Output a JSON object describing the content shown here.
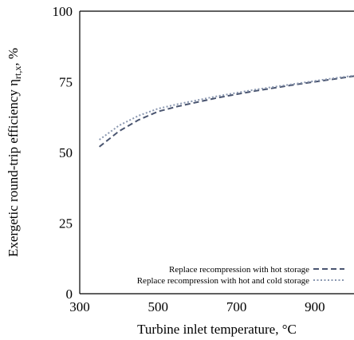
{
  "chart_data": {
    "type": "line",
    "xlabel": "Turbine inlet temperature, °C",
    "ylabel_main": "Exergetic round-trip efficiency η",
    "ylabel_sub": "rt,x",
    "ylabel_suffix": ", %",
    "xlim": [
      300,
      1000
    ],
    "ylim": [
      0,
      100
    ],
    "xticks": [
      300,
      500,
      700,
      900
    ],
    "yticks": [
      0,
      25,
      50,
      75,
      100
    ],
    "grid": false,
    "legend_position": "bottom-right",
    "series": [
      {
        "name": "Replace recompression with hot storage",
        "color": "#4a5570",
        "dash": "dashed",
        "x": [
          350,
          400,
          450,
          500,
          550,
          600,
          650,
          700,
          750,
          800,
          850,
          900,
          950,
          1000
        ],
        "y": [
          52.0,
          57.5,
          61.5,
          64.5,
          66.3,
          67.8,
          69.3,
          70.6,
          71.8,
          72.9,
          74.0,
          75.0,
          76.0,
          77.0
        ]
      },
      {
        "name": "Replace recompression with hot and cold storage",
        "color": "#8a97b0",
        "dash": "dotted",
        "x": [
          350,
          400,
          450,
          500,
          550,
          600,
          650,
          700,
          750,
          800,
          850,
          900,
          950,
          1000
        ],
        "y": [
          54.5,
          59.5,
          63.0,
          65.5,
          67.1,
          68.5,
          69.9,
          71.1,
          72.3,
          73.3,
          74.3,
          75.3,
          76.3,
          77.2
        ]
      }
    ]
  }
}
